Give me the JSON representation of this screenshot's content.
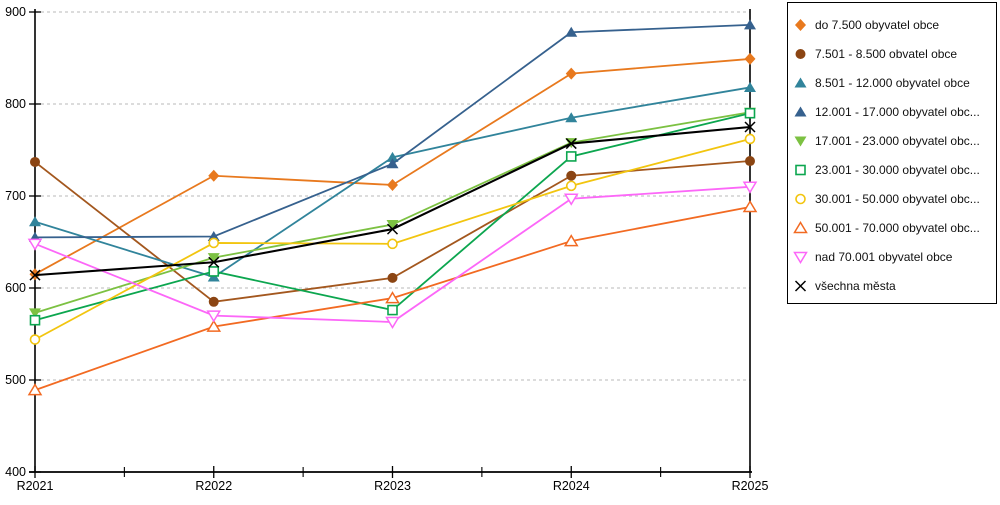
{
  "chart_data": {
    "type": "line",
    "categories": [
      "R2021",
      "R2022",
      "R2023",
      "R2024",
      "R2025"
    ],
    "ylim": [
      400,
      900
    ],
    "y_ticks": [
      400,
      500,
      600,
      700,
      800,
      900
    ],
    "grid": "horizontal-dashed",
    "legend_position": "right",
    "series": [
      {
        "name": "do 7.500 obyvatel obce",
        "marker": "diamond-filled",
        "color": "#E8791E",
        "values": [
          615,
          722,
          712,
          833,
          849
        ]
      },
      {
        "name": "7.501 - 8.500 obvatel obce",
        "marker": "circle-filled",
        "color": "#8B4513",
        "line_color": "#A3571E",
        "values": [
          737,
          585,
          611,
          722,
          738
        ]
      },
      {
        "name": "8.501 - 12.000 obyvatel obce",
        "marker": "triangle-up-filled",
        "color": "#31849B",
        "values": [
          672,
          612,
          742,
          785,
          818
        ]
      },
      {
        "name": "12.001 - 17.000 obyvatel obc...",
        "marker": "triangle-up-filled",
        "color": "#36618E",
        "values": [
          655,
          656,
          735,
          878,
          886
        ]
      },
      {
        "name": "17.001 - 23.000 obyvatel obc...",
        "marker": "triangle-down-filled",
        "color": "#7CC142",
        "values": [
          573,
          633,
          669,
          758,
          791
        ]
      },
      {
        "name": "23.001 - 30.000 obyvatel obc...",
        "marker": "square-open",
        "color": "#0CA64F",
        "values": [
          565,
          618,
          576,
          743,
          790
        ]
      },
      {
        "name": "30.001 - 50.000 obyvatel obc...",
        "marker": "circle-open",
        "color": "#F2C50F",
        "values": [
          544,
          649,
          648,
          711,
          762
        ]
      },
      {
        "name": "50.001 - 70.000 obyvatel obc...",
        "marker": "triangle-up-open",
        "color": "#F26A22",
        "values": [
          489,
          558,
          589,
          651,
          688
        ]
      },
      {
        "name": "nad 70.001 obyvatel obce",
        "marker": "triangle-down-open",
        "color": "#FC67F8",
        "values": [
          648,
          570,
          563,
          697,
          710
        ]
      },
      {
        "name": "všechna města",
        "marker": "x-mark",
        "color": "#000000",
        "line_width": 2.1,
        "values": [
          614,
          628,
          664,
          757,
          775
        ]
      }
    ]
  },
  "colors": {
    "grid": "#C6C6C6",
    "axis": "#000000",
    "background": "#FFFFFF",
    "tick_label": "#000000"
  }
}
